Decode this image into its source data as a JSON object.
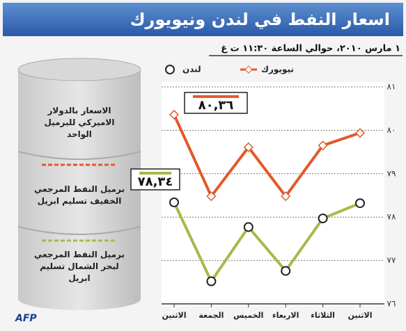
{
  "chart_data": {
    "type": "line",
    "title": "اسعار النفط في لندن ونيويورك",
    "subtitle": "١ مارس ٢٠١٠، حوالي الساعة ١١:٣٠ ت غ",
    "notes": [
      "الاسعار بالدولار الاميركي للبرميل الواحد",
      "برميل النفط المرجعي الخفيف تسليم ابريل",
      "برميل النفط المرجعي لبحر الشمال تسليم ابريل"
    ],
    "source": "AFP",
    "categories": [
      "الاثنين",
      "الثلاثاء",
      "الاربعاء",
      "الخميس",
      "الجمعة",
      "الاثنين"
    ],
    "series": [
      {
        "name": "نيويورك",
        "color": "#e2592a",
        "values": [
          79.94,
          79.65,
          78.48,
          79.61,
          78.48,
          80.36
        ],
        "value_labels": [
          null,
          null,
          null,
          null,
          null,
          "٨٠,٣٦"
        ]
      },
      {
        "name": "لندن",
        "color": "#a9b84a",
        "values": [
          78.32,
          77.97,
          76.76,
          77.77,
          76.52,
          78.34
        ],
        "value_labels": [
          null,
          null,
          null,
          null,
          null,
          "٧٨,٣٤"
        ]
      }
    ],
    "ylim": [
      76,
      81
    ],
    "yticks": [
      {
        "value": 76,
        "label": "٧٦"
      },
      {
        "value": 77,
        "label": "٧٧"
      },
      {
        "value": 78,
        "label": "٧٨"
      },
      {
        "value": 79,
        "label": "٧٩"
      },
      {
        "value": 80,
        "label": "٨٠"
      },
      {
        "value": 81,
        "label": "٨١"
      }
    ],
    "grid": true
  }
}
